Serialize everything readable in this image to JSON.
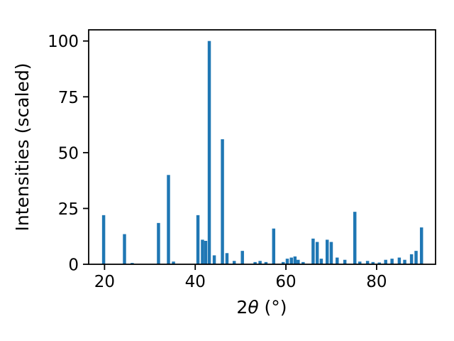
{
  "figure": {
    "background": "#ffffff"
  },
  "chart_data": {
    "type": "bar",
    "title": "",
    "xlabel": "2θ (°)",
    "xlabel_parts": {
      "prefix": "2",
      "theta": "θ",
      "suffix": " (°)"
    },
    "ylabel": "Intensities (scaled)",
    "bar_color": "#1f77b4",
    "bar_width": 0.7,
    "xlim": [
      16.5,
      93
    ],
    "ylim": [
      0,
      105
    ],
    "xticks": [
      20,
      40,
      60,
      80
    ],
    "yticks": [
      0,
      25,
      50,
      75,
      100
    ],
    "grid": false,
    "legend": "none",
    "x": [
      19.8,
      24.4,
      26.1,
      31.9,
      34.1,
      35.2,
      40.6,
      41.6,
      42.3,
      43.1,
      44.2,
      46.0,
      47.0,
      48.6,
      50.4,
      53.2,
      54.3,
      55.6,
      57.3,
      59.4,
      60.3,
      61.2,
      62.0,
      62.7,
      63.8,
      66.0,
      66.9,
      67.8,
      69.1,
      70.0,
      71.3,
      73.0,
      75.2,
      76.3,
      78.0,
      79.2,
      80.6,
      82.0,
      83.4,
      85.0,
      86.2,
      87.7,
      88.7,
      89.9
    ],
    "y": [
      22,
      13.5,
      0.6,
      18.5,
      40,
      1.2,
      22,
      11,
      10.5,
      100,
      4,
      56,
      5,
      1.5,
      6,
      1,
      1.5,
      1,
      16,
      1,
      2.5,
      3,
      3.5,
      2,
      1,
      11.5,
      10,
      2.5,
      11,
      10,
      3,
      2,
      23.5,
      1.2,
      1.5,
      1,
      0.8,
      2,
      2.5,
      3,
      2,
      4.5,
      6,
      16.5
    ]
  }
}
